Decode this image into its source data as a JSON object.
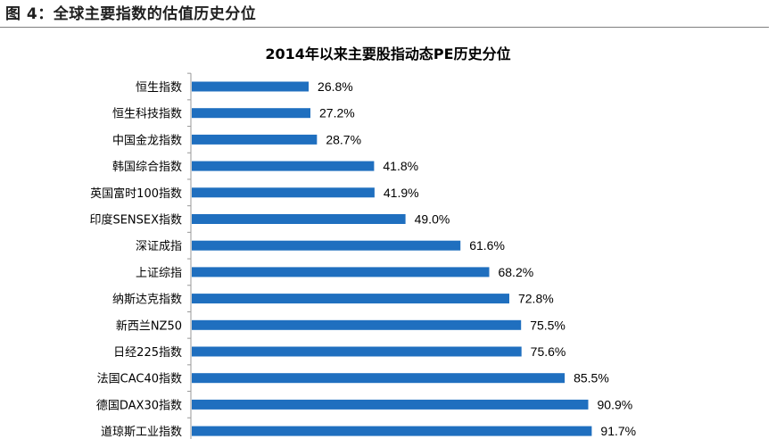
{
  "figure_title": "图 4：全球主要指数的估值历史分位",
  "colors": {
    "bar": "#1f6fbf",
    "axis": "#999999"
  },
  "chart_data": {
    "type": "bar",
    "orientation": "horizontal",
    "title": "2014年以来主要股指动态PE历史分位",
    "xlabel": "",
    "ylabel": "",
    "xlim": [
      0,
      100
    ],
    "grid": false,
    "legend": "none",
    "categories": [
      "恒生指数",
      "恒生科技指数",
      "中国金龙指数",
      "韩国综合指数",
      "英国富时100指数",
      "印度SENSEX指数",
      "深证成指",
      "上证综指",
      "纳斯达克指数",
      "新西兰NZ50",
      "日经225指数",
      "法国CAC40指数",
      "德国DAX30指数",
      "道琼斯工业指数"
    ],
    "values": [
      26.8,
      27.2,
      28.7,
      41.8,
      41.9,
      49.0,
      61.6,
      68.2,
      72.8,
      75.5,
      75.6,
      85.5,
      90.9,
      91.7
    ],
    "value_labels": [
      "26.8%",
      "27.2%",
      "28.7%",
      "41.8%",
      "41.9%",
      "49.0%",
      "61.6%",
      "68.2%",
      "72.8%",
      "75.5%",
      "75.6%",
      "85.5%",
      "90.9%",
      "91.7%"
    ]
  }
}
